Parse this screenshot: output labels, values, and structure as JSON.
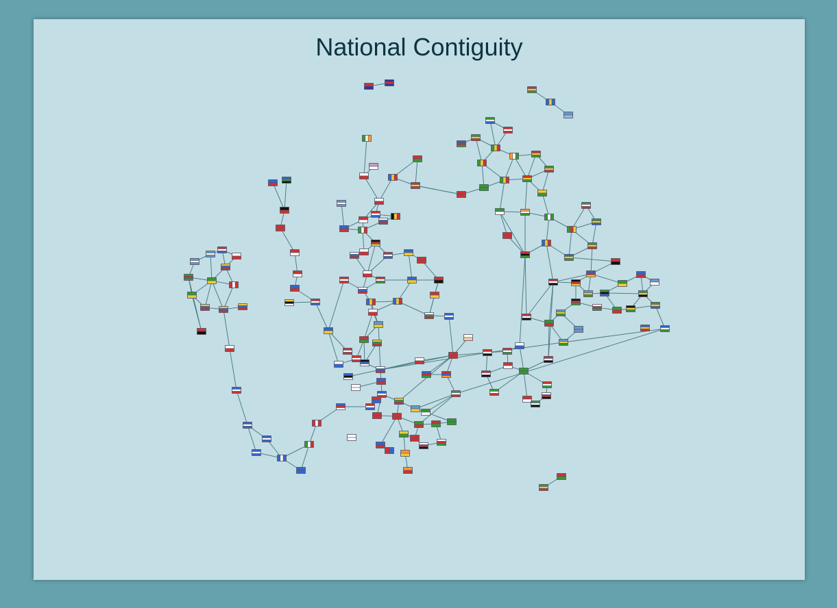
{
  "title": "National Contiguity",
  "colors": {
    "background": "#65a2ad",
    "panel": "#c4dee5",
    "title": "#0b3440",
    "edge": "#4d7f85"
  },
  "node_icon": "flag-icon"
}
